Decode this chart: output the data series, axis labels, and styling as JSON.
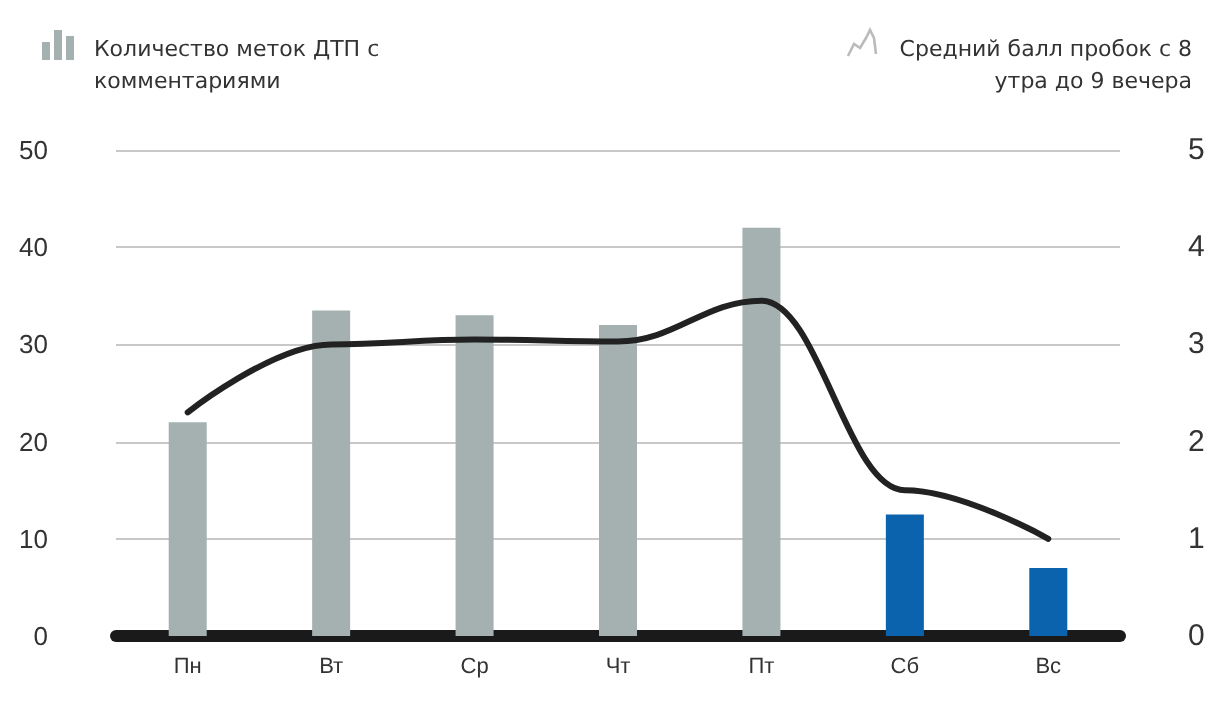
{
  "chart_data": {
    "type": "bar",
    "ylabel": "Количество меток ДТП с комментариями",
    "y2label": "Средний балл пробок с 8 утра до 9 вечера",
    "categories": [
      "Пн",
      "Вт",
      "Ср",
      "Чт",
      "Пт",
      "Сб",
      "Вс"
    ],
    "series": [
      {
        "colors": [
          "#a5b1b1",
          "#a5b1b1",
          "#a5b1b1",
          "#a5b1b1",
          "#a5b1b1",
          "#0b63ad",
          "#0b63ad"
        ],
        "values": [
          22,
          33.5,
          33,
          32,
          42,
          12.5,
          7
        ]
      },
      {
        "type": "line",
        "axis": "y2",
        "color": "#222222",
        "values": [
          2.3,
          3.0,
          3.05,
          3.03,
          3.45,
          1.5,
          1.0
        ]
      }
    ],
    "ylim": [
      0,
      50
    ],
    "yticks": [
      0,
      10,
      20,
      30,
      40,
      50
    ],
    "y2lim": [
      0,
      5
    ],
    "y2ticks": [
      0,
      1,
      2,
      3,
      4,
      5
    ],
    "grid": "y",
    "marker": "none",
    "line_style": "solid"
  }
}
